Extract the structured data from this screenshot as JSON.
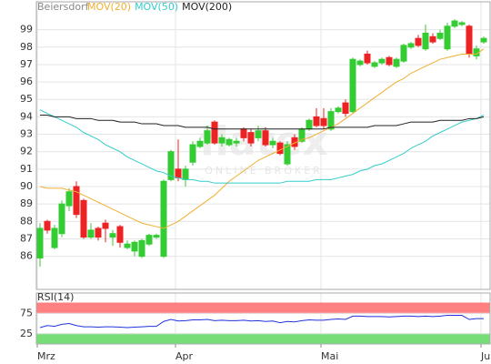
{
  "chart_data": {
    "type": "candlestick",
    "watermark": "flatex",
    "watermark_sub": "ONLINE BROKER",
    "categories": [
      "Mrz",
      null,
      null,
      null,
      null,
      null,
      null,
      null,
      null,
      null,
      null,
      null,
      null,
      null,
      null,
      null,
      null,
      null,
      null,
      "Apr",
      null,
      null,
      null,
      null,
      null,
      null,
      null,
      null,
      null,
      null,
      null,
      null,
      null,
      null,
      null,
      null,
      null,
      null,
      null,
      "Mai",
      null,
      null,
      null,
      null,
      null,
      null,
      null,
      null,
      null,
      null,
      null,
      null,
      null,
      null,
      null,
      null,
      null,
      null,
      null,
      null,
      null,
      "Jun"
    ],
    "candles": {
      "name": "Beiersdorf",
      "up_color": "#33cc33",
      "down_color": "#ee2222",
      "open": [
        85.9,
        88,
        86.5,
        87.3,
        88.9,
        90,
        89.2,
        87.1,
        87.6,
        87.9,
        87.1,
        87.7,
        86.5,
        86.3,
        86,
        86.7,
        87.1,
        86,
        90.4,
        91,
        90.4,
        91.4,
        92.3,
        92.5,
        93.7,
        92.5,
        92.4,
        92.5,
        93.3,
        93.1,
        92.8,
        93.2,
        92.4,
        92.5,
        91.3,
        92.8,
        92.6,
        93.3,
        94,
        93.9,
        93.3,
        94.3,
        94.8,
        94.3,
        97,
        97.6,
        96.9,
        97.1,
        97.4,
        96.9,
        97.2,
        98,
        98.5,
        97.9,
        98.6,
        98.5,
        97.9,
        99.2,
        99.3,
        99.2,
        97.5,
        98.3
      ],
      "high": [
        87.9,
        88.1,
        87.8,
        89.2,
        89.9,
        90.3,
        89.3,
        87.9,
        87.7,
        88.1,
        87.5,
        87.8,
        86.9,
        86.9,
        87,
        87.3,
        87.3,
        90.4,
        92.1,
        92.7,
        91.2,
        92.6,
        92.8,
        93.5,
        93.8,
        93,
        92.8,
        92.8,
        93.4,
        93.3,
        93.5,
        93.4,
        92.8,
        92.6,
        92.6,
        93,
        93.4,
        93.9,
        94.5,
        94.5,
        94.5,
        94.6,
        95,
        97.4,
        97.3,
        97.8,
        97.2,
        97.4,
        97.5,
        97.4,
        98.2,
        98.3,
        98.7,
        99.3,
        98.8,
        99,
        99.4,
        99.6,
        99.5,
        99.3,
        98.1,
        98.6
      ],
      "low": [
        85.4,
        87.3,
        86.4,
        87.1,
        88.6,
        88.2,
        87,
        87,
        86.9,
        86.8,
        86.6,
        86.5,
        86.4,
        86,
        85.9,
        86.6,
        87,
        85.9,
        90.3,
        90.3,
        90,
        91.2,
        92.2,
        92.4,
        92.4,
        92.3,
        92.3,
        92.3,
        92.6,
        92.3,
        92.6,
        92.3,
        92.2,
        91.8,
        91.2,
        92.1,
        92.5,
        93.2,
        93.4,
        93.3,
        93.2,
        94.2,
        94,
        94.2,
        96.9,
        97,
        96.8,
        97,
        96.9,
        96.8,
        97.1,
        97.9,
        98,
        97.8,
        98.2,
        98.4,
        97.8,
        99.1,
        99.2,
        97.4,
        97.3,
        98.2
      ],
      "close": [
        87.6,
        87.5,
        87.6,
        89,
        89.7,
        88.4,
        87.1,
        87.5,
        87.1,
        87.6,
        87.3,
        86.8,
        86.7,
        86.8,
        86.9,
        87.2,
        87.2,
        90.3,
        92,
        90.5,
        91,
        92.4,
        92.6,
        93.2,
        92.5,
        92.8,
        92.7,
        92.6,
        92.8,
        92.5,
        93.2,
        92.4,
        92.6,
        91.9,
        92.4,
        92.3,
        93.3,
        93.8,
        93.5,
        93.5,
        94.3,
        94.5,
        94.2,
        97.3,
        97.2,
        97.1,
        97.1,
        97.3,
        97,
        97.3,
        98.1,
        98.2,
        98.1,
        98.8,
        98.3,
        98.8,
        99.2,
        99.5,
        99.4,
        97.6,
        97.9,
        98.5
      ]
    },
    "series": [
      {
        "name": "MOV(20)",
        "color": "#f0b030",
        "values": [
          90,
          89.9,
          89.9,
          89.9,
          89.8,
          89.7,
          89.5,
          89.3,
          89.1,
          88.9,
          88.7,
          88.5,
          88.3,
          88.1,
          87.9,
          87.8,
          87.7,
          87.6,
          87.8,
          88,
          88.3,
          88.6,
          88.9,
          89.2,
          89.5,
          89.9,
          90.3,
          90.6,
          90.9,
          91.2,
          91.5,
          91.7,
          91.9,
          92.1,
          92.3,
          92.5,
          92.7,
          92.8,
          93,
          93.2,
          93.4,
          93.6,
          93.9,
          94.2,
          94.5,
          94.8,
          95.1,
          95.4,
          95.7,
          96,
          96.2,
          96.5,
          96.7,
          96.9,
          97.1,
          97.3,
          97.4,
          97.5,
          97.6,
          97.6,
          97.6,
          97.9
        ]
      },
      {
        "name": "MOV(50)",
        "color": "#33cccc",
        "values": [
          94.4,
          94.2,
          94,
          93.8,
          93.6,
          93.4,
          93.1,
          92.9,
          92.7,
          92.4,
          92.2,
          92,
          91.7,
          91.5,
          91.3,
          91.1,
          90.9,
          90.8,
          90.6,
          90.5,
          90.4,
          90.4,
          90.3,
          90.3,
          90.2,
          90.2,
          90.2,
          90.2,
          90.2,
          90.2,
          90.2,
          90.2,
          90.2,
          90.2,
          90.3,
          90.3,
          90.3,
          90.3,
          90.4,
          90.4,
          90.4,
          90.5,
          90.6,
          90.7,
          90.9,
          91,
          91.2,
          91.3,
          91.5,
          91.7,
          91.9,
          92.2,
          92.4,
          92.6,
          92.9,
          93.1,
          93.3,
          93.5,
          93.7,
          93.8,
          93.9,
          94.1
        ]
      },
      {
        "name": "MOV(200)",
        "color": "#222222",
        "values": [
          94.1,
          94.1,
          94,
          94,
          94,
          93.9,
          93.9,
          93.9,
          93.8,
          93.8,
          93.8,
          93.7,
          93.7,
          93.7,
          93.6,
          93.6,
          93.6,
          93.5,
          93.5,
          93.5,
          93.4,
          93.4,
          93.4,
          93.4,
          93.3,
          93.3,
          93.3,
          93.3,
          93.3,
          93.3,
          93.3,
          93.3,
          93.3,
          93.3,
          93.3,
          93.3,
          93.3,
          93.3,
          93.3,
          93.3,
          93.4,
          93.4,
          93.4,
          93.4,
          93.4,
          93.4,
          93.5,
          93.5,
          93.5,
          93.5,
          93.6,
          93.7,
          93.7,
          93.7,
          93.7,
          93.8,
          93.8,
          93.8,
          93.8,
          93.9,
          93.9,
          94
        ]
      }
    ],
    "ylim": [
      84.1,
      100.6
    ],
    "yticks": [
      86,
      87,
      88,
      89,
      90,
      91,
      92,
      93,
      94,
      95,
      96,
      97,
      98,
      99
    ],
    "grid": true,
    "indicator": {
      "type": "line",
      "title": "RSI(14)",
      "color": "#2233dd",
      "values": [
        40,
        45,
        43,
        48,
        50,
        45,
        42,
        42,
        41,
        42,
        42,
        41,
        40,
        41,
        42,
        43,
        43,
        55,
        60,
        56,
        57,
        59,
        59,
        60,
        57,
        58,
        57,
        57,
        58,
        56,
        57,
        55,
        56,
        52,
        55,
        54,
        57,
        59,
        58,
        58,
        60,
        61,
        60,
        68,
        68,
        67,
        67,
        67,
        66,
        67,
        68,
        68,
        67,
        68,
        67,
        68,
        70,
        70,
        70,
        60,
        62,
        62
      ],
      "ylim": [
        0,
        100
      ],
      "yticks": [
        25,
        75
      ],
      "bands": [
        {
          "from": 75,
          "to": 100,
          "color": "#ff8080"
        },
        {
          "from": 0,
          "to": 25,
          "color": "#77dd77"
        }
      ]
    }
  }
}
